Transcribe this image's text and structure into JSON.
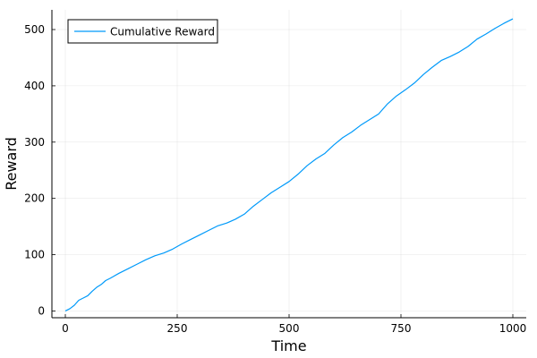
{
  "chart_data": {
    "type": "line",
    "xlabel": "Time",
    "ylabel": "Reward",
    "xlim": [
      -30,
      1030
    ],
    "ylim": [
      -12,
      535
    ],
    "x_ticks": [
      0,
      250,
      500,
      750,
      1000
    ],
    "y_ticks": [
      0,
      100,
      200,
      300,
      400,
      500
    ],
    "x_tick_labels": [
      "0",
      "250",
      "500",
      "750",
      "1000"
    ],
    "y_tick_labels": [
      "0",
      "100",
      "200",
      "300",
      "400",
      "500"
    ],
    "grid": true,
    "legend_position": "top-left",
    "series": [
      {
        "name": "Cumulative Reward",
        "color": "#009AFA",
        "x": [
          0,
          10,
          20,
          30,
          40,
          50,
          60,
          70,
          80,
          90,
          100,
          120,
          140,
          160,
          180,
          200,
          220,
          240,
          260,
          280,
          300,
          320,
          340,
          360,
          380,
          400,
          420,
          440,
          460,
          480,
          500,
          520,
          540,
          560,
          580,
          600,
          620,
          640,
          660,
          680,
          700,
          720,
          740,
          760,
          780,
          800,
          820,
          840,
          860,
          880,
          900,
          920,
          940,
          960,
          980,
          1000
        ],
        "values": [
          0,
          4,
          10,
          19,
          23,
          27,
          35,
          42,
          47,
          54,
          58,
          67,
          75,
          83,
          91,
          98,
          103,
          110,
          119,
          127,
          135,
          143,
          151,
          156,
          163,
          172,
          186,
          198,
          210,
          220,
          230,
          243,
          258,
          270,
          280,
          295,
          308,
          318,
          330,
          340,
          350,
          368,
          382,
          393,
          405,
          420,
          433,
          445,
          452,
          460,
          470,
          483,
          492,
          502,
          511,
          519
        ]
      }
    ]
  }
}
